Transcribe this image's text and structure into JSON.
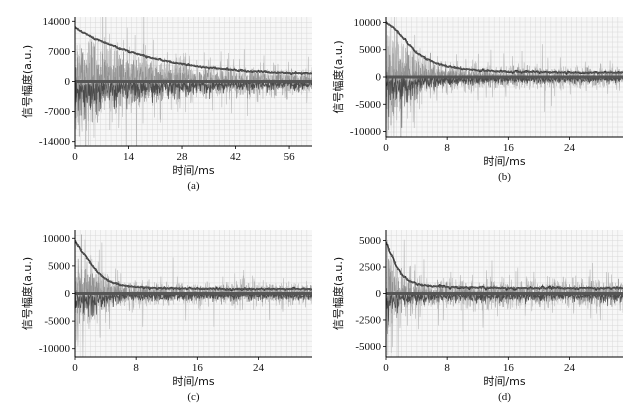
{
  "chart_data": [
    {
      "panel": "(a)",
      "type": "line",
      "xlabel": "时间/ms",
      "ylabel": "信号幅度(a.u.)",
      "xlim": [
        0,
        62
      ],
      "ylim": [
        -15000,
        15000
      ],
      "xticks": [
        0,
        14,
        28,
        42,
        56
      ],
      "yticks": [
        -14000,
        -7000,
        0,
        7000,
        14000
      ],
      "envelope": {
        "x": [
          0,
          2,
          5,
          8,
          12,
          16,
          20,
          25,
          30,
          35,
          40,
          45,
          50,
          55,
          60,
          62
        ],
        "y": [
          12500,
          11500,
          10000,
          9000,
          7600,
          6500,
          5500,
          4500,
          3800,
          3200,
          2800,
          2400,
          2200,
          2000,
          1900,
          1900
        ]
      },
      "noise_amplitude": 3000,
      "grid": true
    },
    {
      "panel": "(b)",
      "type": "line",
      "xlabel": "时间/ms",
      "ylabel": "信号幅度(a.u.)",
      "xlim": [
        0,
        31
      ],
      "ylim": [
        -11000,
        11000
      ],
      "xticks": [
        0,
        8,
        16,
        24
      ],
      "yticks": [
        -10000,
        -5000,
        0,
        5000,
        10000
      ],
      "envelope": {
        "x": [
          0,
          1,
          2,
          3,
          4,
          5,
          6,
          7,
          8,
          10,
          12,
          15,
          20,
          25,
          31
        ],
        "y": [
          10000,
          9000,
          7500,
          6000,
          4500,
          3500,
          2800,
          2300,
          1900,
          1500,
          1200,
          1000,
          900,
          800,
          800
        ]
      },
      "noise_amplitude": 2500,
      "grid": true
    },
    {
      "panel": "(c)",
      "type": "line",
      "xlabel": "时间/ms",
      "ylabel": "信号幅度(a.u.)",
      "xlim": [
        0,
        31
      ],
      "ylim": [
        -11500,
        11500
      ],
      "xticks": [
        0,
        8,
        16,
        24
      ],
      "yticks": [
        -10000,
        -5000,
        0,
        5000,
        10000
      ],
      "envelope": {
        "x": [
          0,
          1,
          2,
          3,
          4,
          5,
          6,
          8,
          10,
          15,
          20,
          25,
          31
        ],
        "y": [
          9500,
          7500,
          5500,
          3800,
          2600,
          1900,
          1500,
          1200,
          1000,
          900,
          800,
          800,
          800
        ]
      },
      "noise_amplitude": 2600,
      "grid": true
    },
    {
      "panel": "(d)",
      "type": "line",
      "xlabel": "时间/ms",
      "ylabel": "信号幅度(a.u.)",
      "xlim": [
        0,
        31
      ],
      "ylim": [
        -6000,
        6000
      ],
      "xticks": [
        0,
        8,
        16,
        24
      ],
      "yticks": [
        -5000,
        -2500,
        0,
        2500,
        5000
      ],
      "envelope": {
        "x": [
          0,
          0.5,
          1,
          1.5,
          2,
          3,
          4,
          6,
          8,
          12,
          16,
          20,
          25,
          31
        ],
        "y": [
          4800,
          4000,
          3200,
          2400,
          1800,
          1200,
          900,
          700,
          600,
          550,
          500,
          500,
          500,
          500
        ]
      },
      "noise_amplitude": 1700,
      "grid": true
    }
  ]
}
